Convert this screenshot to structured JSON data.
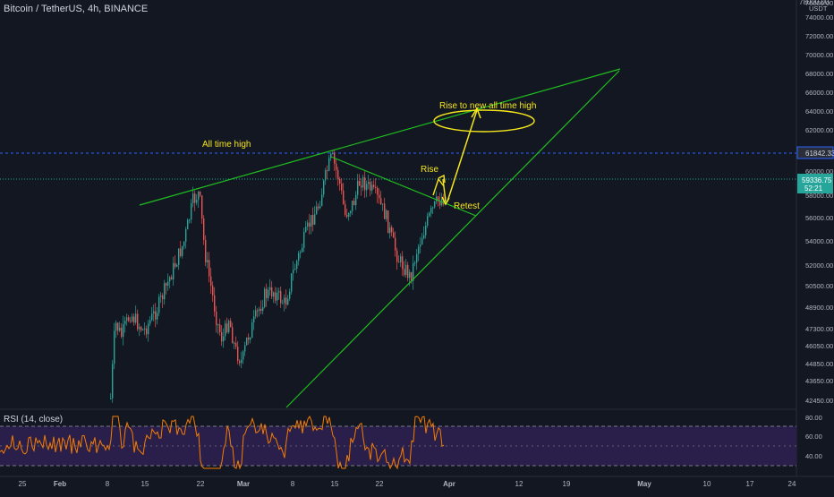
{
  "header": {
    "symbol": "Bitcoin / TetherUS, 4h, BINANCE"
  },
  "rsi": {
    "label": "RSI (14, close)"
  },
  "price_axis": {
    "currency": "USDT",
    "ticks": [
      "76000.00",
      "74000.00",
      "72000.00",
      "70000.00",
      "68000.00",
      "66000.00",
      "64000.00",
      "62000.00",
      "60000.00",
      "58000.00",
      "56000.00",
      "54000.00",
      "52000.00",
      "50500.00",
      "48900.00",
      "47300.00",
      "46050.00",
      "44850.00",
      "43650.00",
      "42450.00"
    ],
    "ath_label": "61842.33",
    "current_label": "59336.75",
    "current_timer": "52:21"
  },
  "rsi_axis": {
    "ticks": [
      "80.00",
      "60.00",
      "40.00"
    ]
  },
  "time_axis": {
    "ticks": [
      "25",
      "Feb",
      "8",
      "15",
      "22",
      "Mar",
      "8",
      "15",
      "22",
      "Apr",
      "12",
      "19",
      "May",
      "10",
      "17",
      "24"
    ]
  },
  "annotations": {
    "ath": "All time high",
    "rise": "Rise",
    "retest": "Retest",
    "new_ath": "Rise to new all time high"
  },
  "colors": {
    "background": "#131722",
    "up_candle": "#26a69a",
    "down_candle": "#ef5350",
    "trendline": "#1fbf1f",
    "annotation": "#f5e61c",
    "rsi_line": "#f57c00",
    "rsi_band": "#2a1f4a",
    "current_price": "#26a69a",
    "ath_line": "#2962ff"
  }
}
